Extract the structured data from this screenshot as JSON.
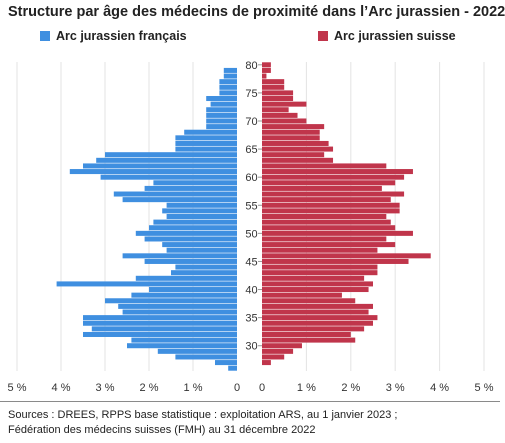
{
  "chart_data": {
    "type": "bar",
    "orientation": "horizontal",
    "layout": "population-pyramid",
    "title": "Structure par âge des médecins de proximité dans l’Arc jurassien - 2022",
    "age_axis": {
      "min": 26,
      "max": 80,
      "tick_labels": [
        "30",
        "35",
        "40",
        "45",
        "50",
        "55",
        "60",
        "65",
        "70",
        "75",
        "80"
      ]
    },
    "value_axis": {
      "left_tick_labels": [
        "5 %",
        "4 %",
        "3 %",
        "2 %",
        "1 %",
        "0"
      ],
      "right_tick_labels": [
        "0",
        "1 %",
        "2 %",
        "3 %",
        "4 %",
        "5 %"
      ],
      "max": 5
    },
    "grid": "vertical",
    "ages": [
      26,
      27,
      28,
      29,
      30,
      31,
      32,
      33,
      34,
      35,
      36,
      37,
      38,
      39,
      40,
      41,
      42,
      43,
      44,
      45,
      46,
      47,
      48,
      49,
      50,
      51,
      52,
      53,
      54,
      55,
      56,
      57,
      58,
      59,
      60,
      61,
      62,
      63,
      64,
      65,
      66,
      67,
      68,
      69,
      70,
      71,
      72,
      73,
      74,
      75,
      76,
      77,
      78,
      79,
      80
    ],
    "series": [
      {
        "name": "Arc jurassien français",
        "color": "#3f8fe0",
        "values": [
          0.2,
          0.5,
          1.4,
          1.8,
          2.5,
          2.4,
          3.5,
          3.3,
          3.5,
          3.5,
          2.6,
          2.7,
          3.0,
          2.4,
          2.0,
          4.1,
          2.3,
          1.5,
          1.4,
          2.1,
          2.6,
          1.6,
          1.7,
          2.1,
          2.3,
          2.0,
          1.9,
          1.6,
          1.7,
          1.6,
          2.6,
          2.8,
          2.1,
          1.9,
          3.1,
          3.8,
          3.5,
          3.2,
          3.0,
          1.4,
          1.4,
          1.4,
          1.2,
          0.7,
          0.7,
          0.7,
          0.7,
          0.6,
          0.7,
          0.4,
          0.4,
          0.4,
          0.3,
          0.3,
          0.0
        ]
      },
      {
        "name": "Arc jurassien suisse",
        "color": "#c0354b",
        "values": [
          0.0,
          0.2,
          0.5,
          0.7,
          0.9,
          2.1,
          2.0,
          2.3,
          2.5,
          2.6,
          2.4,
          2.5,
          2.1,
          1.8,
          2.4,
          2.5,
          2.3,
          2.6,
          2.6,
          3.3,
          3.8,
          2.6,
          3.0,
          2.8,
          3.4,
          3.0,
          2.9,
          2.8,
          3.1,
          3.1,
          2.9,
          3.2,
          2.7,
          3.0,
          3.2,
          3.4,
          2.8,
          1.6,
          1.4,
          1.6,
          1.5,
          1.3,
          1.3,
          1.4,
          1.0,
          0.8,
          0.6,
          1.0,
          0.7,
          0.7,
          0.5,
          0.5,
          0.1,
          0.2,
          0.2
        ]
      }
    ],
    "sources": [
      "Sources : DREES, RPPS base statistique : exploitation ARS, au 1 janvier 2023 ;",
      "Fédération des médecins suisses (FMH) au 31 décembre 2022"
    ]
  }
}
